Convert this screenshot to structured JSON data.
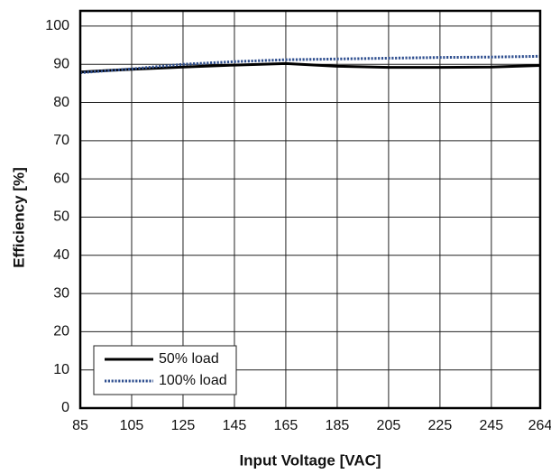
{
  "chart_data": {
    "type": "line",
    "x_label": "Input Voltage [VAC]",
    "y_label": "Efficiency [%]",
    "x": [
      85,
      105,
      125,
      145,
      165,
      185,
      205,
      225,
      245,
      264
    ],
    "series": [
      {
        "name": "50% load",
        "color": "#000000",
        "style": "solid",
        "values": [
          88,
          88.7,
          89.3,
          89.8,
          90.2,
          89.5,
          89.2,
          89.2,
          89.3,
          89.7
        ]
      },
      {
        "name": "100% load",
        "color": "#2f4f8f",
        "style": "dotted",
        "values": [
          87.8,
          88.8,
          90,
          90.7,
          91.2,
          91.4,
          91.6,
          91.8,
          91.9,
          92.1
        ]
      }
    ],
    "xlim": [
      85,
      264
    ],
    "xticks": [
      85,
      105,
      125,
      145,
      165,
      185,
      205,
      225,
      245,
      264
    ],
    "ylim": [
      0,
      104
    ],
    "yticks": [
      0,
      10,
      20,
      30,
      40,
      50,
      60,
      70,
      80,
      90,
      100
    ],
    "grid": true,
    "legend": "lower left"
  }
}
